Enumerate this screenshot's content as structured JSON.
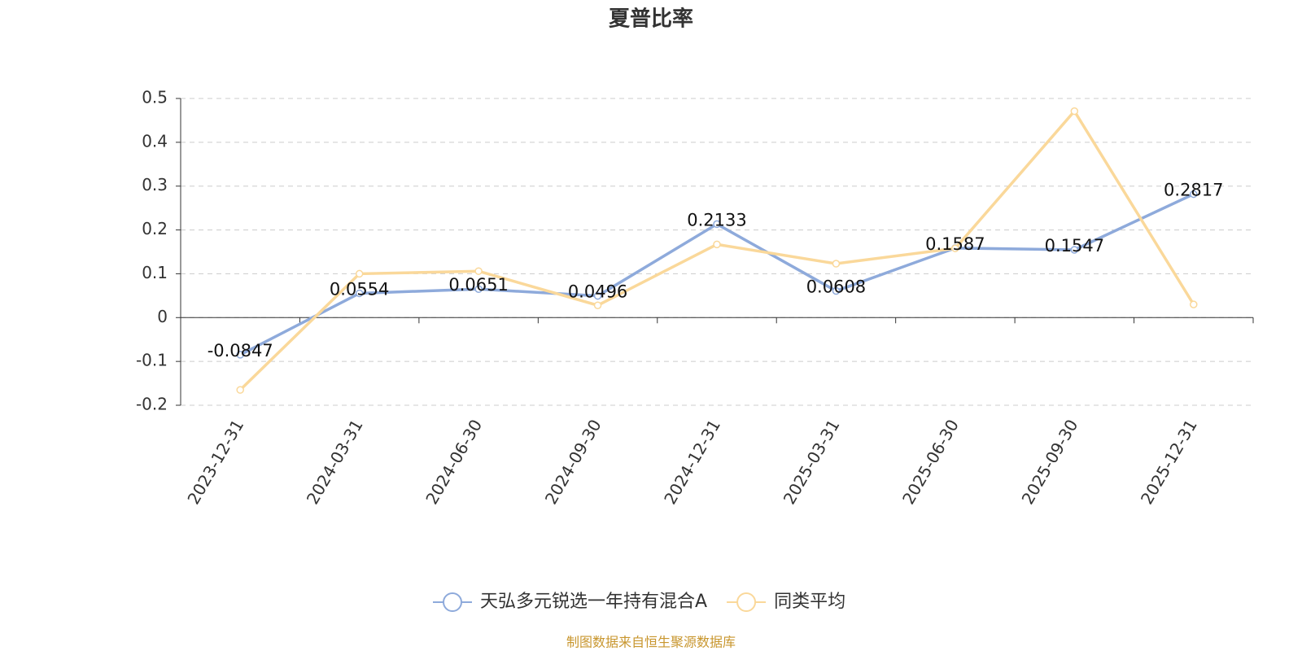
{
  "chart_data": {
    "type": "line",
    "title": "夏普比率",
    "categories": [
      "2023-12-31",
      "2024-03-31",
      "2024-06-30",
      "2024-09-30",
      "2024-12-31",
      "2025-03-31",
      "2025-06-30",
      "2025-09-30",
      "2025-12-31"
    ],
    "series": [
      {
        "name": "天弘多元锐选一年持有混合A",
        "color": "#8eaadb",
        "values": [
          -0.0847,
          0.0554,
          0.0651,
          0.0496,
          0.2133,
          0.0608,
          0.1587,
          0.1547,
          0.2817
        ]
      },
      {
        "name": "同类平均",
        "color": "#fad89a",
        "values": [
          -0.165,
          0.1,
          0.106,
          0.028,
          0.167,
          0.123,
          0.158,
          0.471,
          0.03
        ]
      }
    ],
    "ylim": [
      -0.2,
      0.5
    ],
    "yticks": [
      -0.2,
      -0.1,
      0,
      0.1,
      0.2,
      0.3,
      0.4,
      0.5
    ],
    "grid": true,
    "legend": "bottom",
    "source": "制图数据来自恒生聚源数据库"
  }
}
